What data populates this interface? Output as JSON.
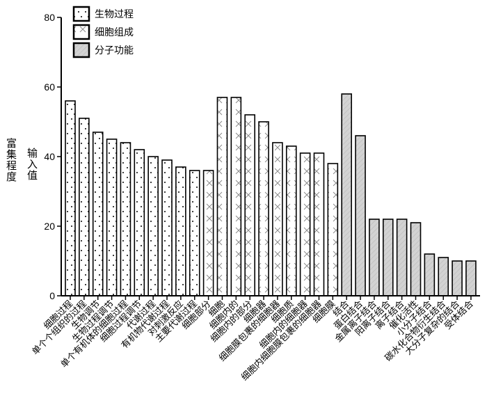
{
  "chart_data": {
    "type": "bar",
    "ylabel": "富集程度",
    "ylabel2": "输入值",
    "ylim": [
      0,
      80
    ],
    "yticks": [
      0,
      20,
      40,
      60,
      80
    ],
    "grid": false,
    "legend_placement": "top-left",
    "series": [
      {
        "name": "生物过程",
        "pattern": "dots",
        "color": "#ffffff",
        "categories": [
          "细胞过程",
          "单个个组织的过程",
          "生物调节",
          "生物过程调节",
          "单个有机体的细胞过程",
          "细胞过程调节",
          "代谢过程",
          "有机物代谢过程",
          "对刺激反应",
          "主要代谢过程"
        ],
        "values": [
          56,
          51,
          47,
          45,
          44,
          42,
          40,
          39,
          37,
          36
        ]
      },
      {
        "name": "细胞组成",
        "pattern": "crosses",
        "color": "#ffffff",
        "categories": [
          "细胞部分",
          "细胞",
          "细胞内的",
          "细胞内的部分",
          "细胞器",
          "细胞膜包裹的细胞器",
          "细胞质",
          "细胞内的细胞器",
          "细胞内细胞膜包裹的细胞器",
          "细胞膜"
        ],
        "values": [
          36,
          57,
          57,
          52,
          50,
          44,
          43,
          41,
          41,
          38
        ]
      },
      {
        "name": "分子功能",
        "pattern": "hatch",
        "color": "#d3d3d3",
        "categories": [
          "结合",
          "蛋白结合",
          "金属离子结合",
          "阳离子结合",
          "离子结合",
          "催化活性",
          "小分子结合",
          "碳水化合物衍生结合",
          "大分子复杂的结合",
          "受体结合"
        ],
        "values": [
          58,
          46,
          22,
          22,
          22,
          21,
          12,
          11,
          10,
          10
        ]
      }
    ]
  }
}
